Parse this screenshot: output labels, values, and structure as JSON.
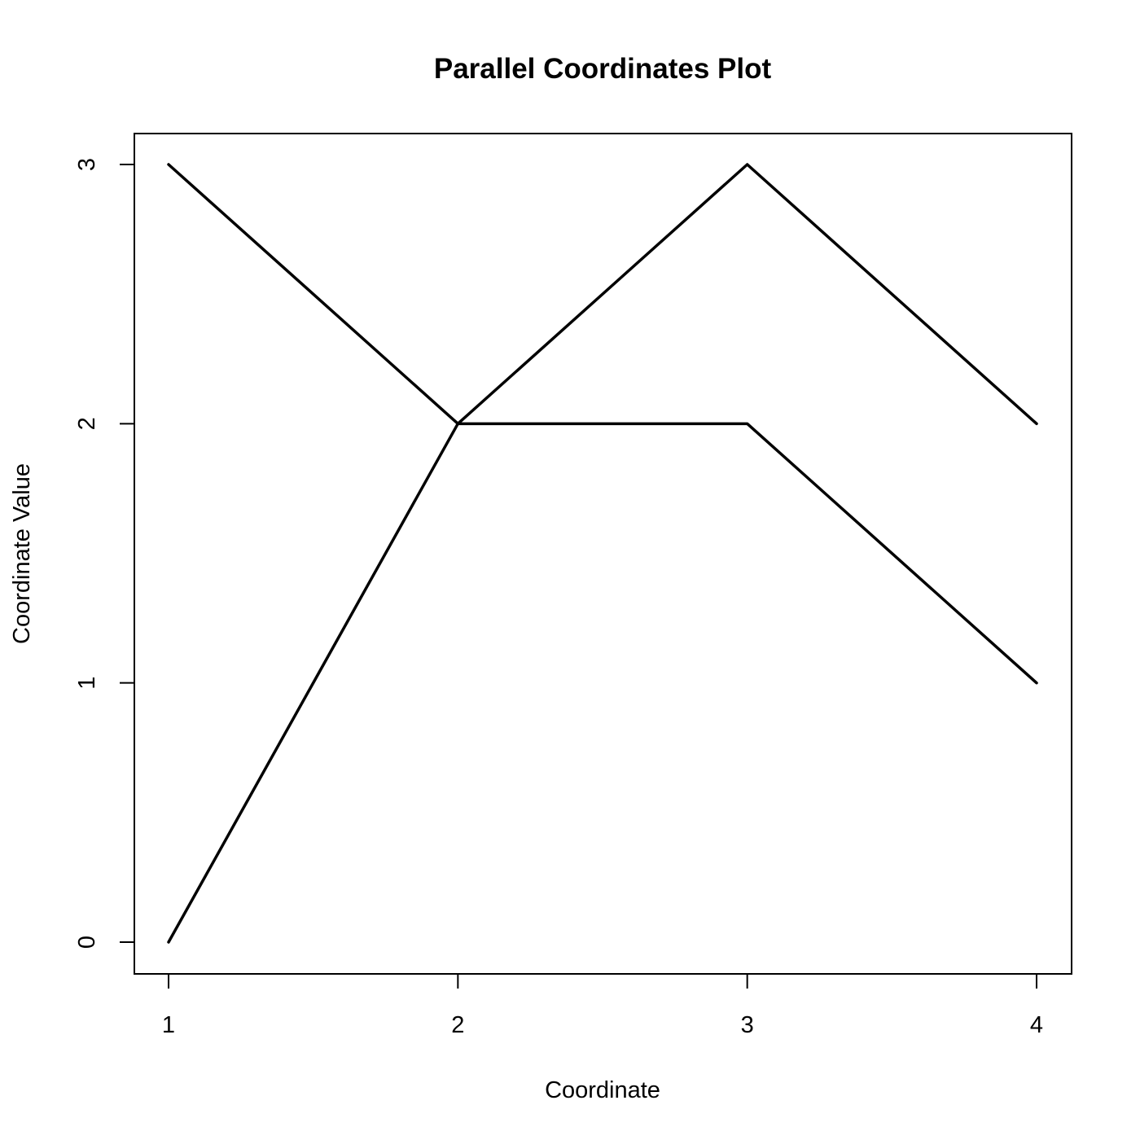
{
  "chart_data": {
    "type": "line",
    "title": "Parallel Coordinates Plot",
    "xlabel": "Coordinate",
    "ylabel": "Coordinate Value",
    "x": [
      1,
      2,
      3,
      4
    ],
    "x_ticks": [
      "1",
      "2",
      "3",
      "4"
    ],
    "y_ticks": [
      "0",
      "1",
      "2",
      "3"
    ],
    "xlim": [
      1,
      4
    ],
    "ylim": [
      0,
      3
    ],
    "grid": false,
    "line_color": "#000000",
    "series": [
      {
        "values": [
          3,
          2,
          2,
          1
        ]
      },
      {
        "values": [
          0,
          2,
          3,
          2
        ]
      }
    ]
  }
}
